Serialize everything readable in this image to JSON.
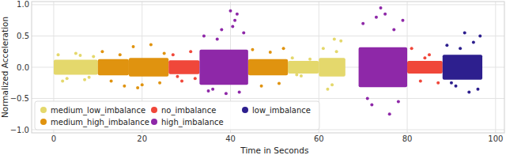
{
  "chart_data": {
    "type": "scatter",
    "x_label": "Time in Seconds",
    "y_label": "Normalized Acceleration",
    "xlim": [
      -5,
      102
    ],
    "ylim": [
      -1.05,
      1.05
    ],
    "xticks": [
      0,
      20,
      40,
      60,
      80,
      100
    ],
    "yticks": [
      {
        "value": -1,
        "label": "−1.0"
      },
      {
        "value": -0.5,
        "label": "−0.5"
      },
      {
        "value": 0,
        "label": "0.0"
      },
      {
        "value": 0.5,
        "label": "0.5"
      },
      {
        "value": 1,
        "label": "1.0"
      }
    ],
    "grid": true,
    "legend": "lower left",
    "series": [
      {
        "name": "medium_low_imbalance",
        "color": "#e4d86c",
        "marker": "circle",
        "bands": [
          {
            "x": [
              0,
              10
            ],
            "y": [
              -0.12,
              0.12
            ]
          },
          {
            "x": [
              53,
              60
            ],
            "y": [
              -0.1,
              0.1
            ]
          },
          {
            "x": [
              60,
              66
            ],
            "y": [
              -0.15,
              0.15
            ]
          }
        ],
        "x": [
          1,
          3,
          5,
          7,
          9,
          2,
          6,
          8,
          54,
          56,
          58,
          55,
          61,
          63,
          65,
          62,
          64,
          63.5
        ],
        "values": [
          0.2,
          -0.18,
          0.22,
          -0.2,
          0.17,
          -0.22,
          0.19,
          -0.16,
          0.15,
          -0.14,
          0.13,
          -0.12,
          0.3,
          -0.28,
          0.42,
          -0.35,
          0.25,
          0.45
        ]
      },
      {
        "name": "medium_high_imbalance",
        "color": "#e0930f",
        "marker": "circle",
        "bands": [
          {
            "x": [
              10,
              17
            ],
            "y": [
              -0.13,
              0.13
            ]
          },
          {
            "x": [
              17,
              26
            ],
            "y": [
              -0.15,
              0.15
            ]
          },
          {
            "x": [
              44,
              53
            ],
            "y": [
              -0.13,
              0.13
            ]
          }
        ],
        "x": [
          11,
          13,
          15,
          16,
          18,
          20,
          22,
          24,
          25,
          19,
          45,
          47,
          49,
          51,
          52
        ],
        "values": [
          0.25,
          -0.22,
          0.2,
          -0.3,
          0.33,
          -0.28,
          0.36,
          -0.25,
          0.22,
          -0.33,
          0.28,
          -0.3,
          0.24,
          -0.26,
          0.3
        ]
      },
      {
        "name": "no_imbalance",
        "color": "#f0473a",
        "marker": "circle",
        "bands": [
          {
            "x": [
              26,
              33
            ],
            "y": [
              -0.11,
              0.11
            ]
          },
          {
            "x": [
              80,
              88
            ],
            "y": [
              -0.1,
              0.1
            ]
          }
        ],
        "x": [
          27,
          29,
          31,
          32,
          28,
          81,
          83,
          85,
          87,
          84
        ],
        "values": [
          0.2,
          -0.22,
          0.25,
          -0.18,
          -0.15,
          0.3,
          -0.22,
          0.2,
          -0.25,
          0.15
        ]
      },
      {
        "name": "high_imbalance",
        "color": "#8e28a8",
        "marker": "circle",
        "bands": [
          {
            "x": [
              33,
              44
            ],
            "y": [
              -0.28,
              0.28
            ]
          },
          {
            "x": [
              69,
              80
            ],
            "y": [
              -0.32,
              0.32
            ]
          }
        ],
        "x": [
          34,
          36,
          38,
          40,
          41,
          42,
          43,
          35,
          37,
          39,
          41.5,
          40.5,
          70,
          72,
          74,
          75,
          76,
          77,
          78,
          79,
          71,
          73
        ],
        "values": [
          0.5,
          -0.35,
          0.6,
          0.9,
          0.75,
          -0.4,
          0.55,
          -0.38,
          0.45,
          -0.42,
          0.85,
          0.65,
          0.7,
          -0.6,
          0.95,
          0.85,
          -0.75,
          0.6,
          -0.55,
          0.75,
          -0.5,
          0.8
        ]
      },
      {
        "name": "low_imbalance",
        "color": "#2d1f8e",
        "marker": "circle",
        "bands": [
          {
            "x": [
              88,
              97
            ],
            "y": [
              -0.2,
              0.2
            ]
          }
        ],
        "x": [
          89,
          91,
          93,
          95,
          96,
          90,
          92,
          94,
          96.5
        ],
        "values": [
          0.35,
          -0.3,
          0.55,
          0.4,
          -0.35,
          -0.25,
          0.3,
          -0.4,
          0.5
        ]
      }
    ]
  }
}
